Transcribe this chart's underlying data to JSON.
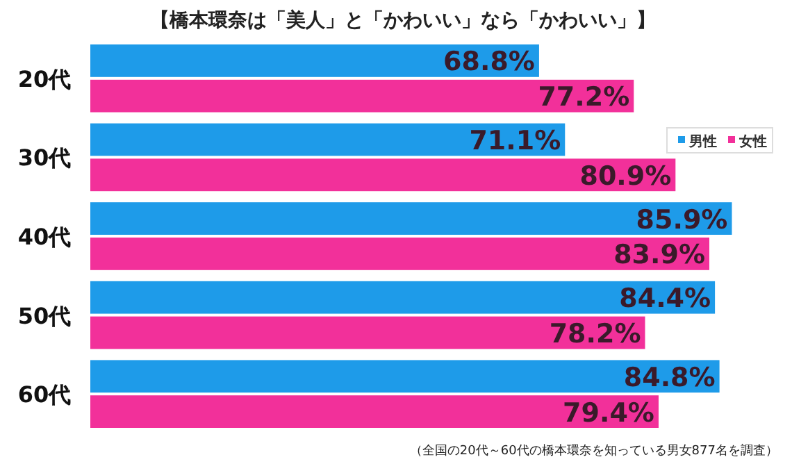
{
  "chart_data": {
    "type": "bar",
    "orientation": "horizontal",
    "title": "【橋本環奈は「美人」と「かわいい」なら「かわいい」】",
    "categories": [
      "20代",
      "30代",
      "40代",
      "50代",
      "60代"
    ],
    "series": [
      {
        "name": "男性",
        "color": "#1e9be9",
        "values": [
          68.8,
          71.1,
          85.9,
          84.4,
          84.8
        ],
        "value_labels": [
          "68.8%",
          "71.1%",
          "85.9%",
          "84.4%",
          "84.8%"
        ]
      },
      {
        "name": "女性",
        "color": "#f2309a",
        "values": [
          77.2,
          80.9,
          83.9,
          78.2,
          79.4
        ],
        "value_labels": [
          "77.2%",
          "80.9%",
          "83.9%",
          "78.2%",
          "79.4%"
        ]
      }
    ],
    "xlim": [
      29,
      90
    ],
    "legend": "right",
    "annotations": [
      "（全国の20代～60代の橋本環奈を知っている男女877名を調査）"
    ]
  }
}
